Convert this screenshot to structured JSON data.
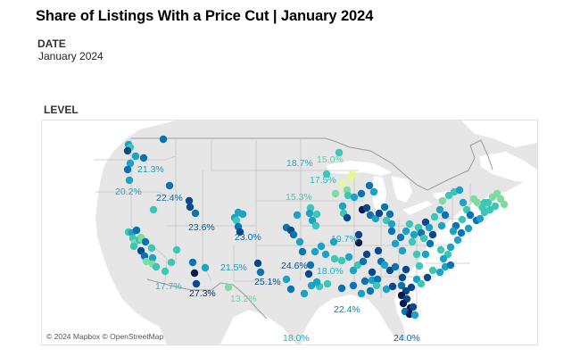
{
  "header": {
    "title": "Share of Listings With a Price Cut | January 2024"
  },
  "filters": {
    "date_label": "DATE",
    "date_value": "January 2024",
    "level_label": "LEVEL"
  },
  "map": {
    "attribution": "© 2024 Mapbox © OpenStreetMap",
    "colors": {
      "land": "#e6e6e6",
      "water": "#ffffff",
      "border": "#bdbdbd",
      "country_border": "#9a9a9a",
      "scale_lowest": "#e9f79b",
      "scale_low": "#7fdca0",
      "scale_mid_low": "#3cc6b8",
      "scale_mid": "#1aa2c7",
      "scale_mid_high": "#0a74b3",
      "scale_high": "#08488e",
      "scale_highest": "#061d4e"
    },
    "labels": [
      {
        "text": "21.3%",
        "color": "#1a9bbf"
      },
      {
        "text": "20.2%",
        "color": "#22a8c3"
      },
      {
        "text": "22.4%",
        "color": "#0d6ea8"
      },
      {
        "text": "23.6%",
        "color": "#0c5b9d"
      },
      {
        "text": "23.0%",
        "color": "#0c6aa6"
      },
      {
        "text": "18.7%",
        "color": "#25afc6"
      },
      {
        "text": "15.0%",
        "color": "#58d3ae"
      },
      {
        "text": "17.5%",
        "color": "#2cb9c3"
      },
      {
        "text": "15.3%",
        "color": "#45c9b4"
      },
      {
        "text": "19.7%",
        "color": "#22a6c4"
      },
      {
        "text": "21.5%",
        "color": "#1a98bf"
      },
      {
        "text": "24.6%",
        "color": "#0b4f94"
      },
      {
        "text": "18.0%",
        "color": "#2ab3c5"
      },
      {
        "text": "25.1%",
        "color": "#0a4690"
      },
      {
        "text": "17.7%",
        "color": "#2cb7c5"
      },
      {
        "text": "27.3%",
        "color": "#08306f"
      },
      {
        "text": "13.2%",
        "color": "#66d9a3"
      },
      {
        "text": "22.4%",
        "color": "#0f7ab0"
      },
      {
        "text": "18.0%",
        "color": "#26adc6"
      },
      {
        "text": "24.0%",
        "color": "#0c5c9e"
      }
    ]
  }
}
